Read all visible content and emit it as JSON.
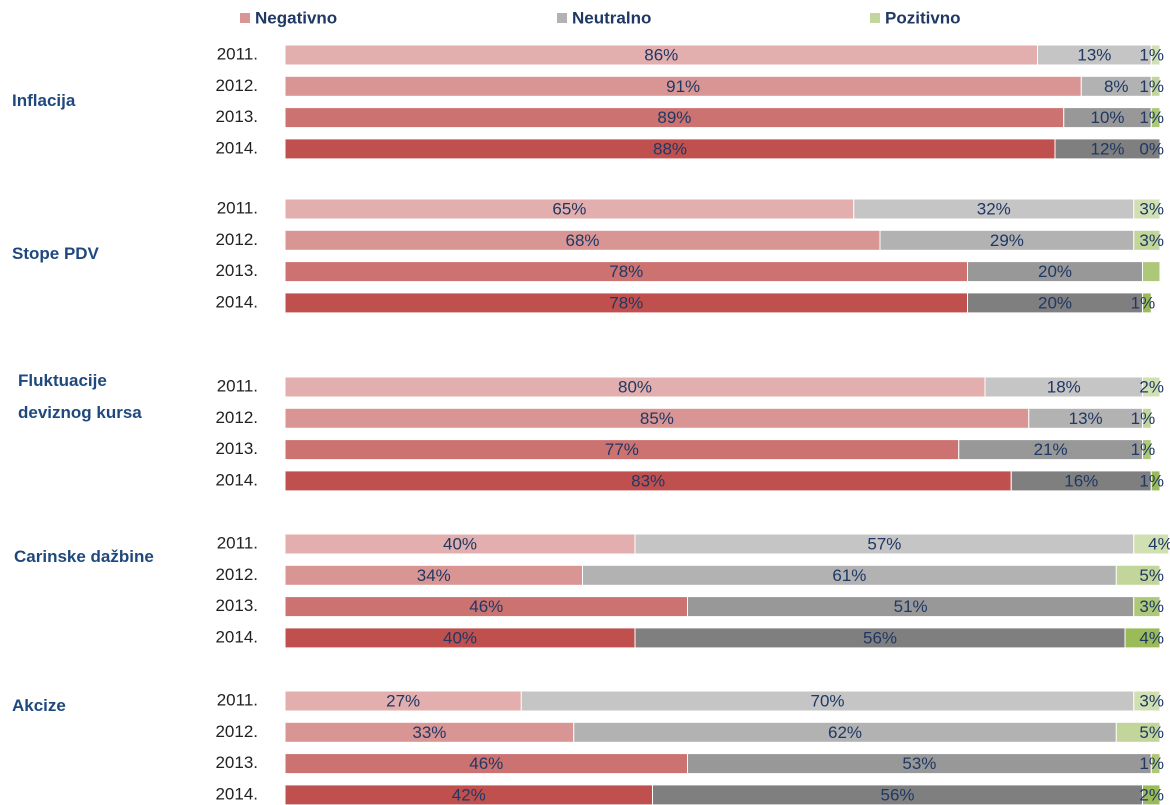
{
  "chart_data": {
    "type": "stacked-bar-horizontal",
    "groups": [
      "Inflacija",
      "Stope PDV",
      "Fluktuacije deviznog kursa",
      "Carinske dažbine",
      "Akcize"
    ],
    "categories": [
      "2011.",
      "2012.",
      "2013.",
      "2014.",
      "2011.",
      "2012.",
      "2013.",
      "2014.",
      "2011.",
      "2012.",
      "2013.",
      "2014.",
      "2011.",
      "2012.",
      "2013.",
      "2014.",
      "2011.",
      "2012.",
      "2013.",
      "2014."
    ],
    "series": [
      {
        "name": "Negativno",
        "color": "#c0504d",
        "values": [
          86,
          91,
          89,
          88,
          65,
          68,
          78,
          78,
          80,
          85,
          77,
          83,
          40,
          34,
          46,
          40,
          27,
          33,
          46,
          42
        ],
        "value_labels": [
          "86%",
          "91%",
          "89%",
          "88%",
          "65%",
          "68%",
          "78%",
          "78%",
          "80%",
          "85%",
          "77%",
          "83%",
          "40%",
          "34%",
          "46%",
          "40%",
          "27%",
          "33%",
          "46%",
          "42%"
        ]
      },
      {
        "name": "Neutralno",
        "color": "#7f7f7f",
        "values": [
          13,
          8,
          10,
          12,
          32,
          29,
          20,
          20,
          18,
          13,
          21,
          16,
          57,
          61,
          51,
          56,
          70,
          62,
          53,
          56
        ],
        "value_labels": [
          "13%",
          "8%",
          "10%",
          "12%",
          "32%",
          "29%",
          "20%",
          "20%",
          "18%",
          "13%",
          "21%",
          "16%",
          "57%",
          "61%",
          "51%",
          "56%",
          "70%",
          "62%",
          "53%",
          "56%"
        ]
      },
      {
        "name": "Pozitivno",
        "color": "#9bbb59",
        "values": [
          1,
          1,
          1,
          0,
          3,
          3,
          2,
          1,
          2,
          1,
          1,
          1,
          4,
          5,
          3,
          4,
          3,
          5,
          1,
          2
        ],
        "value_labels": [
          "1%",
          "1%",
          "1%",
          "0%",
          "3%",
          "3%",
          null,
          "1%",
          "2%",
          "1%",
          "1%",
          "1%",
          "4%",
          "5%",
          "3%",
          "4%",
          "3%",
          "5%",
          "1%",
          "2%"
        ]
      }
    ]
  }
}
